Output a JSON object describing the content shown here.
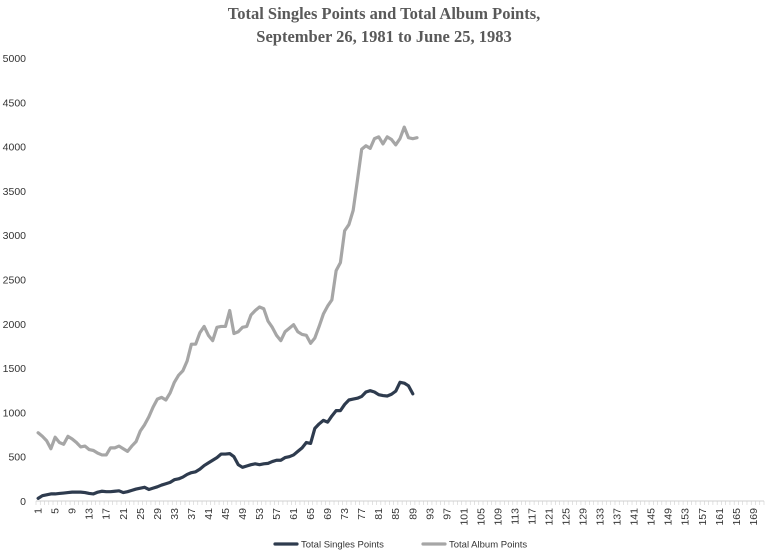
{
  "chart_data": {
    "type": "line",
    "title_lines": [
      "Total Singles Points and Total Album Points,",
      "September 26, 1981 to June 25, 1983"
    ],
    "xlabel": "",
    "ylabel": "",
    "x_range": [
      1,
      171
    ],
    "x_tick_labels": [
      "1",
      "5",
      "9",
      "13",
      "17",
      "21",
      "25",
      "29",
      "33",
      "37",
      "41",
      "45",
      "49",
      "53",
      "57",
      "61",
      "65",
      "69",
      "73",
      "77",
      "81",
      "85",
      "89",
      "93",
      "97",
      "101",
      "105",
      "109",
      "113",
      "117",
      "121",
      "125",
      "129",
      "133",
      "137",
      "141",
      "145",
      "149",
      "153",
      "157",
      "161",
      "165",
      "169"
    ],
    "ylim": [
      0,
      5000
    ],
    "y_ticks": [
      0,
      500,
      1000,
      1500,
      2000,
      2500,
      3000,
      3500,
      4000,
      4500,
      5000
    ],
    "grid": false,
    "legend_position": "bottom",
    "series": [
      {
        "name": "Total Singles Points",
        "color": "#2e3b4e",
        "values": [
          30,
          60,
          70,
          80,
          80,
          85,
          90,
          95,
          100,
          100,
          100,
          95,
          85,
          80,
          100,
          110,
          105,
          105,
          110,
          115,
          95,
          105,
          120,
          135,
          145,
          155,
          130,
          145,
          160,
          180,
          195,
          210,
          240,
          250,
          270,
          300,
          320,
          330,
          360,
          400,
          430,
          460,
          490,
          530,
          530,
          535,
          500,
          410,
          380,
          395,
          410,
          420,
          410,
          420,
          425,
          445,
          460,
          460,
          490,
          500,
          520,
          560,
          600,
          660,
          650,
          820,
          870,
          910,
          890,
          960,
          1020,
          1020,
          1090,
          1140,
          1150,
          1160,
          1180,
          1230,
          1245,
          1230,
          1200,
          1190,
          1185,
          1205,
          1240,
          1340,
          1330,
          1300,
          1210
        ],
        "x_start": 1
      },
      {
        "name": "Total Album Points",
        "color": "#a6a6a6",
        "values": [
          770,
          730,
          680,
          590,
          720,
          660,
          640,
          730,
          700,
          660,
          610,
          620,
          580,
          570,
          540,
          520,
          520,
          600,
          600,
          620,
          590,
          560,
          620,
          670,
          790,
          860,
          950,
          1060,
          1150,
          1170,
          1140,
          1220,
          1340,
          1420,
          1470,
          1580,
          1770,
          1770,
          1900,
          1970,
          1870,
          1810,
          1960,
          1970,
          1970,
          2150,
          1890,
          1910,
          1960,
          1970,
          2100,
          2150,
          2190,
          2170,
          2030,
          1960,
          1870,
          1810,
          1910,
          1950,
          1990,
          1910,
          1880,
          1870,
          1780,
          1840,
          1970,
          2110,
          2200,
          2270,
          2600,
          2690,
          3050,
          3120,
          3280,
          3620,
          3970,
          4010,
          3980,
          4090,
          4110,
          4030,
          4110,
          4080,
          4020,
          4090,
          4220,
          4100,
          4090,
          4100
        ],
        "x_start": 1
      }
    ]
  }
}
